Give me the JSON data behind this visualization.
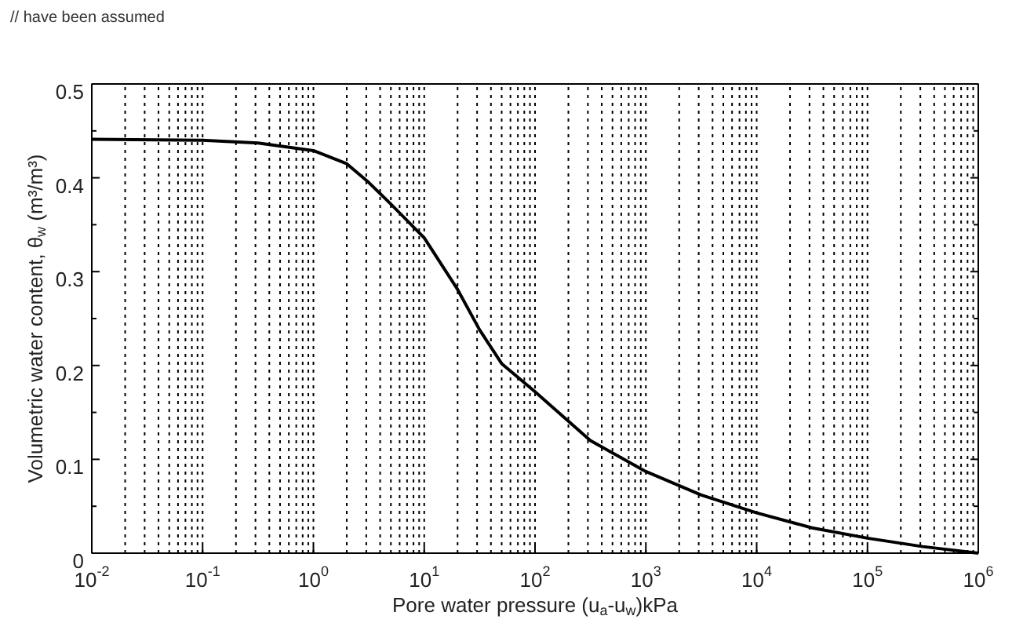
{
  "chart_data": {
    "type": "line",
    "xlabel": "Pore water pressure (u$_{a}$-u$_{w}$)kPa",
    "ylabel": "Volumetric water content, θ$_{w}$ (m³/m³)",
    "annotations": [
      "// have been assumed"
    ],
    "log": "x",
    "x": [
      0.01,
      0.1,
      0.316,
      1,
      2,
      3.16,
      5,
      10,
      20,
      31.6,
      50,
      100,
      316,
      1000,
      3160,
      10000,
      31600,
      100000,
      316000,
      1000000
    ],
    "series": [
      {
        "color": "#000000",
        "values": [
          0.441,
          0.44,
          0.437,
          0.429,
          0.415,
          0.395,
          0.372,
          0.336,
          0.281,
          0.238,
          0.202,
          0.172,
          0.12,
          0.087,
          0.062,
          0.043,
          0.027,
          0.016,
          0.007,
          0.0
        ]
      }
    ],
    "xlim": [
      0.01,
      1000000
    ],
    "xticks": [
      {
        "value": 0.01,
        "label": "10$^{-2}$"
      },
      {
        "value": 0.1,
        "label": "10$^{-1}$"
      },
      {
        "value": 1,
        "label": "10$^{0}$"
      },
      {
        "value": 10,
        "label": "10$^{1}$"
      },
      {
        "value": 100,
        "label": "10$^{2}$"
      },
      {
        "value": 1000,
        "label": "10$^{3}$"
      },
      {
        "value": 10000,
        "label": "10$^{4}$"
      },
      {
        "value": 100000,
        "label": "10$^{5}$"
      },
      {
        "value": 1000000,
        "label": "10$^{6}$"
      }
    ],
    "ylim": [
      0,
      0.5
    ],
    "yticks": [
      0,
      0.1,
      0.2,
      0.3,
      0.4,
      0.5
    ],
    "grid": "x",
    "legend": false,
    "marker": "none",
    "line_style": "solid"
  }
}
